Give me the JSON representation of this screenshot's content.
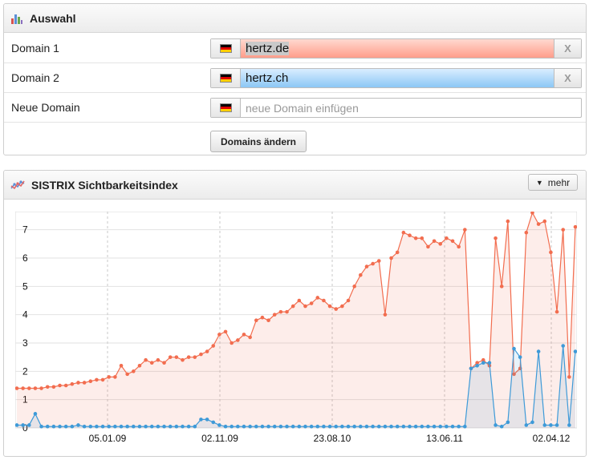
{
  "selection": {
    "title": "Auswahl",
    "rows": [
      {
        "label": "Domain 1",
        "value": "hertz.de",
        "remove": "X"
      },
      {
        "label": "Domain 2",
        "value": "hertz.ch",
        "remove": "X"
      },
      {
        "label": "Neue Domain",
        "placeholder": "neue Domain einfügen"
      }
    ],
    "submit_label": "Domains ändern"
  },
  "visibility": {
    "title": "SISTRIX Sichtbarkeitsindex",
    "more_label": "mehr"
  },
  "colors": {
    "domain1": "#f26d4f",
    "domain2": "#3e9ad8",
    "flag": "germany-flag"
  },
  "chart_data": {
    "type": "line",
    "ylim": [
      0,
      7.5
    ],
    "yticks": [
      0,
      1,
      2,
      3,
      4,
      5,
      6,
      7
    ],
    "xticks": [
      "05.01.09",
      "02.11.09",
      "23.08.10",
      "13.06.11",
      "02.04.12"
    ],
    "grid": true,
    "series": [
      {
        "name": "hertz.de",
        "values": [
          1.4,
          1.4,
          1.4,
          1.4,
          1.4,
          1.45,
          1.45,
          1.5,
          1.5,
          1.55,
          1.6,
          1.6,
          1.65,
          1.7,
          1.7,
          1.8,
          1.8,
          2.2,
          1.9,
          2.0,
          2.2,
          2.4,
          2.3,
          2.4,
          2.3,
          2.5,
          2.5,
          2.4,
          2.5,
          2.5,
          2.6,
          2.7,
          2.9,
          3.3,
          3.4,
          3.0,
          3.1,
          3.3,
          3.2,
          3.8,
          3.9,
          3.8,
          4.0,
          4.1,
          4.1,
          4.3,
          4.5,
          4.3,
          4.4,
          4.6,
          4.5,
          4.3,
          4.2,
          4.3,
          4.5,
          5.0,
          5.4,
          5.7,
          5.8,
          5.9,
          4.0,
          6.0,
          6.2,
          6.9,
          6.8,
          6.7,
          6.7,
          6.4,
          6.6,
          6.5,
          6.7,
          6.6,
          6.4,
          7.0,
          2.1,
          2.3,
          2.4,
          2.2,
          6.7,
          5.0,
          7.3,
          1.9,
          2.1,
          6.9,
          7.6,
          7.2,
          7.3,
          6.2,
          4.1,
          7.0,
          1.8,
          7.1
        ]
      },
      {
        "name": "hertz.ch",
        "values": [
          0.1,
          0.1,
          0.1,
          0.5,
          0.05,
          0.05,
          0.05,
          0.05,
          0.05,
          0.05,
          0.1,
          0.05,
          0.05,
          0.05,
          0.05,
          0.05,
          0.05,
          0.05,
          0.05,
          0.05,
          0.05,
          0.05,
          0.05,
          0.05,
          0.05,
          0.05,
          0.05,
          0.05,
          0.05,
          0.05,
          0.3,
          0.3,
          0.2,
          0.1,
          0.05,
          0.05,
          0.05,
          0.05,
          0.05,
          0.05,
          0.05,
          0.05,
          0.05,
          0.05,
          0.05,
          0.05,
          0.05,
          0.05,
          0.05,
          0.05,
          0.05,
          0.05,
          0.05,
          0.05,
          0.05,
          0.05,
          0.05,
          0.05,
          0.05,
          0.05,
          0.05,
          0.05,
          0.05,
          0.05,
          0.05,
          0.05,
          0.05,
          0.05,
          0.05,
          0.05,
          0.05,
          0.05,
          0.05,
          0.05,
          2.1,
          2.2,
          2.3,
          2.3,
          0.1,
          0.05,
          0.2,
          2.8,
          2.5,
          0.1,
          0.2,
          2.7,
          0.1,
          0.1,
          0.1,
          2.9,
          0.1,
          2.7
        ]
      }
    ]
  }
}
